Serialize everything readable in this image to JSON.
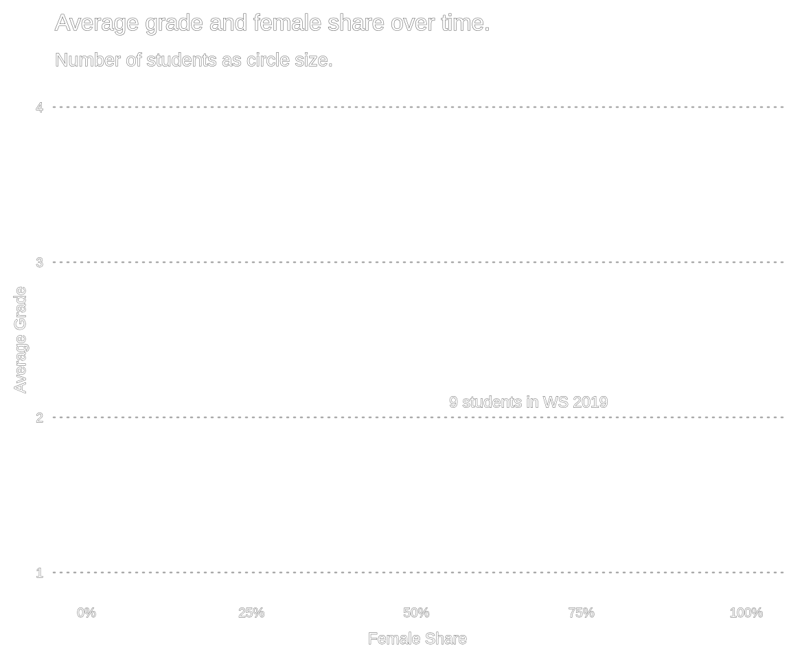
{
  "chart_data": {
    "type": "scatter",
    "title": "Average grade and female share over time.",
    "subtitle": "Number of students as circle size.",
    "xlabel": "Female Share",
    "ylabel": "Average Grade",
    "xlim": [
      0,
      1
    ],
    "ylim": [
      1,
      4
    ],
    "x_ticks": [
      {
        "value": 0,
        "label": "0%"
      },
      {
        "value": 0.25,
        "label": "25%"
      },
      {
        "value": 0.5,
        "label": "50%"
      },
      {
        "value": 0.75,
        "label": "75%"
      },
      {
        "value": 1,
        "label": "100%"
      }
    ],
    "y_ticks": [
      {
        "value": 1,
        "label": "1"
      },
      {
        "value": 2,
        "label": "2"
      },
      {
        "value": 3,
        "label": "3"
      },
      {
        "value": 4,
        "label": "4"
      }
    ],
    "grid": "horizontal dotted",
    "points": [],
    "annotations": [
      {
        "text": "9 students in WS 2019",
        "x": 0.67,
        "y": 2.1
      }
    ]
  }
}
